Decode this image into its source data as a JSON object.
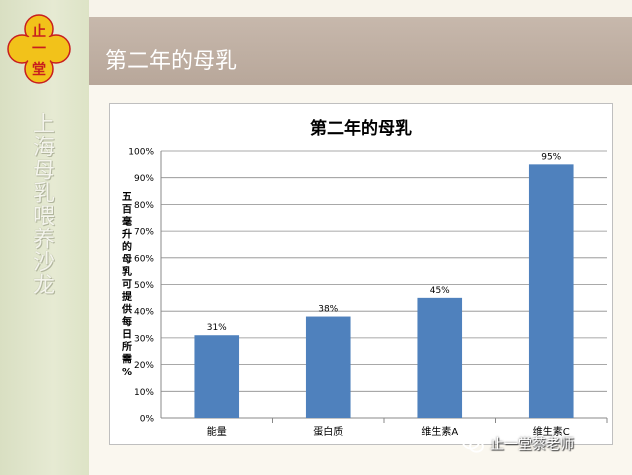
{
  "sidebar": {
    "vertical_text": "上海母乳喂养沙龙",
    "logo": {
      "char_top": "止",
      "char_mid": "一",
      "char_bottom": "堂",
      "colors": {
        "petals": "#f2c21a",
        "ring": "#c81e1e"
      }
    }
  },
  "slide": {
    "title": "第二年的母乳",
    "titlebar_color": "#bcab9e"
  },
  "chart_data": {
    "type": "bar",
    "title": "第二年的母乳",
    "xlabel": "",
    "ylabel": "五百毫升的母乳可提供每日所需%",
    "categories": [
      "能量",
      "蛋白质",
      "维生素A",
      "维生素C"
    ],
    "values": [
      31,
      38,
      45,
      95
    ],
    "data_labels": [
      "31%",
      "38%",
      "45%",
      "95%"
    ],
    "ylim": [
      0,
      100
    ],
    "yticks": [
      "0%",
      "10%",
      "20%",
      "30%",
      "40%",
      "50%",
      "60%",
      "70%",
      "80%",
      "90%",
      "100%"
    ],
    "grid": true,
    "legend": "none",
    "colors": {
      "bar": "#4f81bd"
    }
  },
  "watermark": {
    "text": "止一堂蔡老师",
    "icon": "wechat-icon"
  }
}
